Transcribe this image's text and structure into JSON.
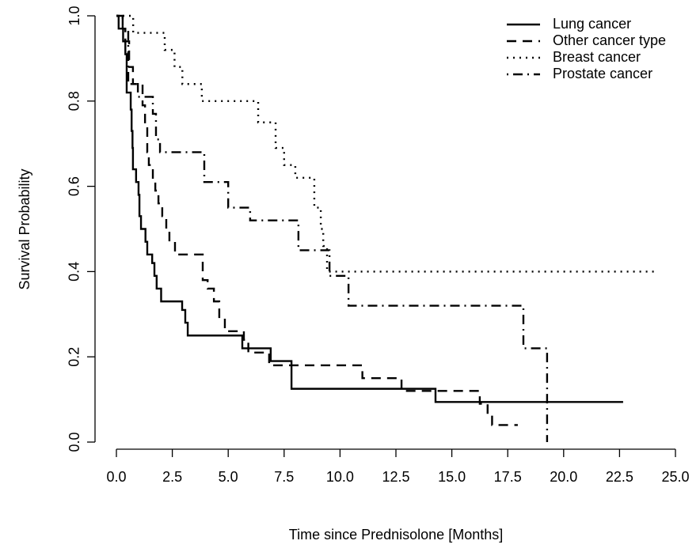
{
  "chart_data": {
    "type": "step",
    "xlabel": "Time since Prednisolone [Months]",
    "ylabel": "Survival Probability",
    "xlim": [
      0,
      25
    ],
    "ylim": [
      0,
      1
    ],
    "xticks": [
      {
        "value": 0,
        "label": "0.0"
      },
      2.5,
      {
        "value": 5,
        "label": "5.0"
      },
      7.5,
      {
        "value": 10,
        "label": "10.0"
      },
      12.5,
      {
        "value": 15,
        "label": "15.0"
      },
      17.5,
      {
        "value": 20,
        "label": "20.0"
      },
      22.5,
      {
        "value": 25,
        "label": "25.0"
      }
    ],
    "yticks": [
      {
        "value": 0,
        "label": "0.0"
      },
      0.2,
      0.4,
      0.6,
      0.8,
      {
        "value": 1,
        "label": "1.0"
      }
    ],
    "legend": "top-right",
    "series": [
      {
        "name": "Lung cancer",
        "color": "#000000",
        "linetype": "solid",
        "x": [
          0,
          0.1,
          0.3,
          0.4,
          0.46,
          0.64,
          0.68,
          0.72,
          0.74,
          0.88,
          0.99,
          1.03,
          1.1,
          1.3,
          1.38,
          1.6,
          1.7,
          1.8,
          2.0,
          2.94,
          3.08,
          3.19,
          5.63,
          6.9,
          7.83,
          14.27,
          22.66
        ],
        "values": [
          1.0,
          0.97,
          0.94,
          0.91,
          0.82,
          0.78,
          0.73,
          0.69,
          0.64,
          0.61,
          0.58,
          0.53,
          0.5,
          0.47,
          0.44,
          0.42,
          0.39,
          0.36,
          0.33,
          0.31,
          0.28,
          0.25,
          0.22,
          0.19,
          0.125,
          0.094,
          0.094
        ]
      },
      {
        "name": "Other cancer type",
        "color": "#000000",
        "linetype": "dashed",
        "x": [
          0,
          0.28,
          0.4,
          0.57,
          0.74,
          1.17,
          1.28,
          1.38,
          1.45,
          1.63,
          1.74,
          1.88,
          2.05,
          2.23,
          2.37,
          2.62,
          3.86,
          4.08,
          4.36,
          4.6,
          4.85,
          5.7,
          5.9,
          6.83,
          11.0,
          12.75,
          16.25,
          16.6,
          16.8,
          17.95
        ],
        "values": [
          1.0,
          0.97,
          0.94,
          0.88,
          0.84,
          0.79,
          0.74,
          0.68,
          0.65,
          0.61,
          0.59,
          0.56,
          0.53,
          0.5,
          0.47,
          0.44,
          0.38,
          0.36,
          0.33,
          0.29,
          0.26,
          0.24,
          0.21,
          0.18,
          0.15,
          0.12,
          0.09,
          0.065,
          0.04,
          0.04
        ]
      },
      {
        "name": "Breast cancer",
        "color": "#000000",
        "linetype": "dotted",
        "x": [
          0,
          0.75,
          2.16,
          2.6,
          2.95,
          3.82,
          4.85,
          6.34,
          7.12,
          7.5,
          8.0,
          8.85,
          9.14,
          9.25,
          9.42,
          24.1
        ],
        "values": [
          1.0,
          0.96,
          0.92,
          0.88,
          0.84,
          0.8,
          0.8,
          0.75,
          0.69,
          0.65,
          0.62,
          0.55,
          0.5,
          0.46,
          0.4,
          0.4
        ]
      },
      {
        "name": "Prostate cancer",
        "color": "#000000",
        "linetype": "dotdash",
        "x": [
          0,
          0.28,
          0.53,
          0.96,
          1.63,
          1.77,
          1.95,
          3.93,
          5.0,
          5.98,
          8.14,
          9.53,
          10.38,
          18.2,
          19.26,
          19.26
        ],
        "values": [
          1.0,
          0.97,
          0.84,
          0.81,
          0.77,
          0.71,
          0.68,
          0.61,
          0.55,
          0.52,
          0.45,
          0.39,
          0.32,
          0.22,
          0.22,
          0
        ]
      }
    ]
  }
}
